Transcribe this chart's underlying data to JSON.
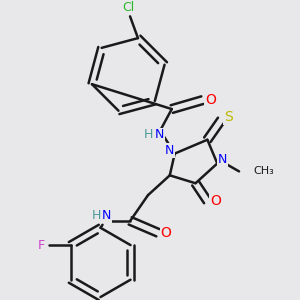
{
  "bg_color": "#e8e8ea",
  "bond_color": "#1a1a1a",
  "bond_width": 1.8,
  "figsize": [
    3.0,
    3.0
  ],
  "dpi": 100,
  "atom_colors": {
    "Cl": "#2db82d",
    "O": "#ff0000",
    "N": "#0000ff",
    "H": "#4a9a9a",
    "S": "#bbbb00",
    "F": "#cc44cc",
    "C": "#1a1a1a"
  }
}
